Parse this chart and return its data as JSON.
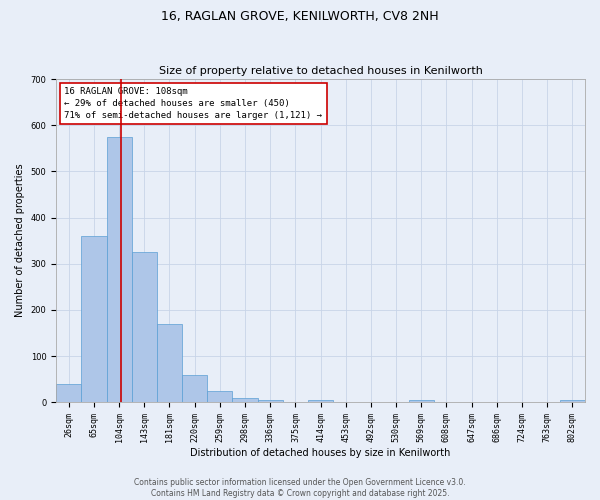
{
  "title1": "16, RAGLAN GROVE, KENILWORTH, CV8 2NH",
  "title2": "Size of property relative to detached houses in Kenilworth",
  "xlabel": "Distribution of detached houses by size in Kenilworth",
  "ylabel": "Number of detached properties",
  "categories": [
    "26sqm",
    "65sqm",
    "104sqm",
    "143sqm",
    "181sqm",
    "220sqm",
    "259sqm",
    "298sqm",
    "336sqm",
    "375sqm",
    "414sqm",
    "453sqm",
    "492sqm",
    "530sqm",
    "569sqm",
    "608sqm",
    "647sqm",
    "686sqm",
    "724sqm",
    "763sqm",
    "802sqm"
  ],
  "values": [
    40,
    360,
    575,
    325,
    170,
    60,
    25,
    10,
    5,
    0,
    5,
    0,
    0,
    0,
    5,
    0,
    0,
    0,
    0,
    0,
    5
  ],
  "bar_color": "#aec6e8",
  "bar_edge_color": "#5a9fd4",
  "bar_edge_width": 0.5,
  "grid_color": "#c8d4e8",
  "background_color": "#e8eef8",
  "red_line_x": 2.08,
  "red_line_color": "#cc0000",
  "annotation_text": "16 RAGLAN GROVE: 108sqm\n← 29% of detached houses are smaller (450)\n71% of semi-detached houses are larger (1,121) →",
  "annotation_box_color": "white",
  "annotation_box_edge": "#cc0000",
  "ylim": [
    0,
    700
  ],
  "yticks": [
    0,
    100,
    200,
    300,
    400,
    500,
    600,
    700
  ],
  "footer1": "Contains HM Land Registry data © Crown copyright and database right 2025.",
  "footer2": "Contains public sector information licensed under the Open Government Licence v3.0.",
  "title1_fontsize": 9,
  "title2_fontsize": 8,
  "xlabel_fontsize": 7,
  "ylabel_fontsize": 7,
  "tick_fontsize": 6,
  "annotation_fontsize": 6.5,
  "footer_fontsize": 5.5
}
